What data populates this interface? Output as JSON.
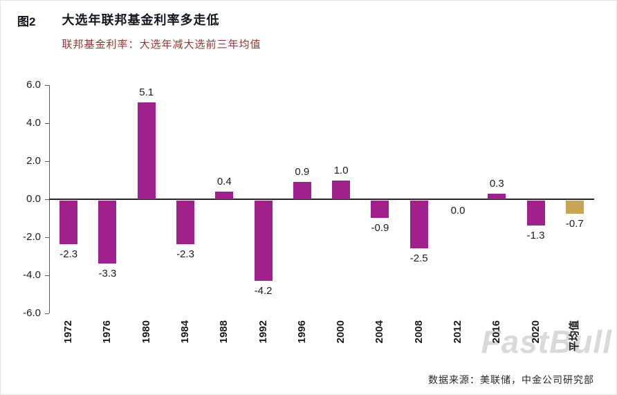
{
  "header": {
    "figure_label": "图2",
    "title": "大选年联邦基金利率多走低",
    "subtitle": "联邦基金利率：大选年减大选前三年均值"
  },
  "chart_data": {
    "type": "bar",
    "title": "大选年联邦基金利率多走低",
    "subtitle": "联邦基金利率：大选年减大选前三年均值",
    "categories": [
      "1972",
      "1976",
      "1980",
      "1984",
      "1988",
      "1992",
      "1996",
      "2000",
      "2004",
      "2008",
      "2012",
      "2016",
      "2020",
      "平均值"
    ],
    "values": [
      -2.3,
      -3.3,
      5.1,
      -2.3,
      0.4,
      -4.2,
      0.9,
      1.0,
      -0.9,
      -2.5,
      0.0,
      0.3,
      -1.3,
      -0.7
    ],
    "xlabel": "",
    "ylabel": "",
    "ylim": [
      -6.0,
      6.0
    ],
    "yticks": [
      "6.0",
      "4.0",
      "2.0",
      "0.0",
      "-2.0",
      "-4.0",
      "-6.0"
    ],
    "grid": false,
    "legend": "none",
    "bar_color": "#A0208C",
    "highlight_color": "#C8A457",
    "highlight_index": 13,
    "data_labels": true
  },
  "watermark": {
    "text": "FastBull"
  },
  "footer": {
    "source": "数据来源：美联储，中金公司研究部"
  },
  "colors": {
    "bar": "#A0208C",
    "average_bar": "#C8A457",
    "title_text": "#10171f",
    "subtitle_text": "#8f3535",
    "axis": "#595959",
    "zero_line": "#262626"
  }
}
